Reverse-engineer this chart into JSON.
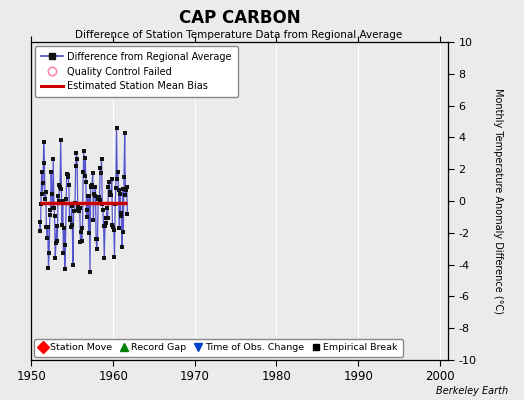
{
  "title": "CAP CARBON",
  "subtitle": "Difference of Station Temperature Data from Regional Average",
  "ylabel": "Monthly Temperature Anomaly Difference (°C)",
  "bottom_credit": "Berkeley Earth",
  "xlim": [
    1950,
    2001
  ],
  "ylim": [
    -10,
    10
  ],
  "yticks": [
    -10,
    -8,
    -6,
    -4,
    -2,
    0,
    2,
    4,
    6,
    8,
    10
  ],
  "xticks": [
    1950,
    1960,
    1970,
    1980,
    1990,
    2000
  ],
  "data_start_year": 1951.0,
  "data_end_year": 1961.75,
  "bias_value": -0.15,
  "background_color": "#ebebeb",
  "line_color": "#4444cc",
  "bias_color": "#cc0000",
  "marker_color": "#111111",
  "seed": 42,
  "n_points": 130
}
